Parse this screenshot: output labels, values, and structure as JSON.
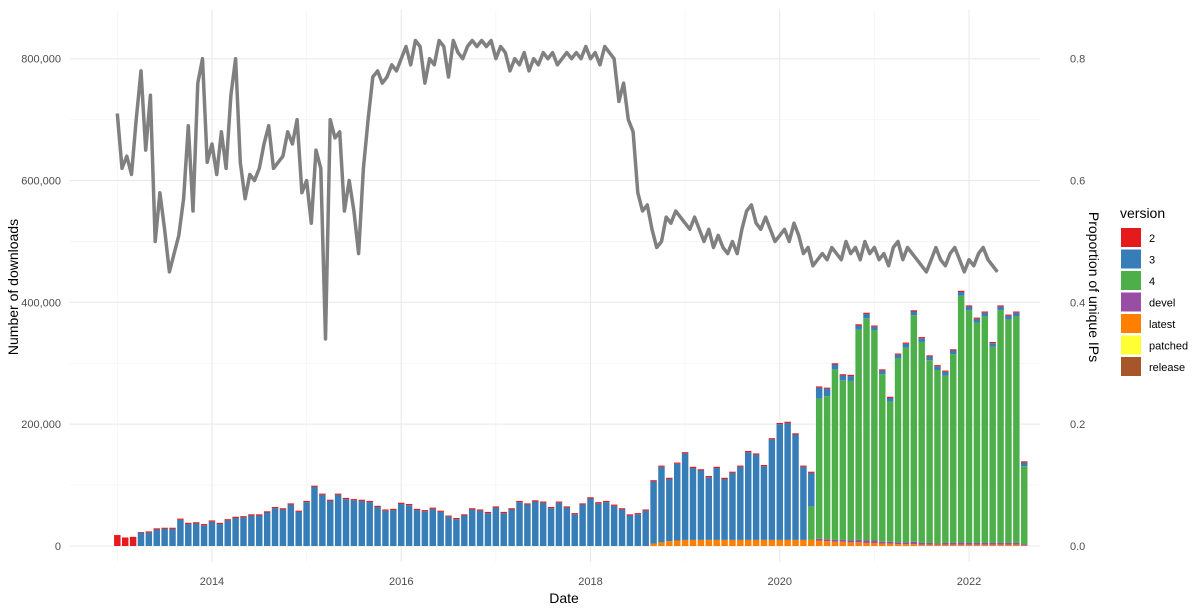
{
  "chart_data": {
    "type": "bar",
    "xlabel": "Date",
    "ylabel": "Number of downloads",
    "y2label": "Proportion of unique IPs",
    "ylim": [
      0,
      880000
    ],
    "y2lim": [
      0,
      0.88
    ],
    "xlim": [
      2012.5,
      2022.75
    ],
    "x_ticks": [
      "2014",
      "2016",
      "2018",
      "2020",
      "2022"
    ],
    "y_ticks": [
      "0",
      "200,000",
      "400,000",
      "600,000",
      "800,000"
    ],
    "y2_ticks": [
      "0.0",
      "0.2",
      "0.4",
      "0.6",
      "0.8"
    ],
    "legend": {
      "title": "version",
      "position": "right"
    },
    "grid": true,
    "colors": {
      "2": "#E41A1C",
      "3": "#377EB8",
      "4": "#4DAF4A",
      "devel": "#984EA3",
      "latest": "#FF7F00",
      "patched": "#FFFF33",
      "release": "#A65628",
      "line": "#808080"
    },
    "series": [
      {
        "name": "2",
        "x_start": 2013.0,
        "values": [
          18000,
          14000,
          15000,
          1000,
          2000,
          2000,
          2000,
          2000,
          2000,
          2000,
          2000,
          2000,
          2000,
          2000,
          2000,
          2000,
          2000,
          2000,
          2000,
          2000,
          2000,
          2000,
          2000,
          2000,
          2000,
          2000,
          2000,
          2000,
          2000,
          2000,
          2000,
          2000,
          2000,
          2000,
          2000,
          2000,
          2000,
          2000,
          2000,
          2000,
          2000,
          2000,
          2000,
          2000,
          2000,
          2000,
          2000,
          2000,
          2000,
          2000,
          2000,
          2000,
          2000,
          2000,
          2000,
          2000,
          2000,
          2000,
          2000,
          2000,
          2000,
          2000,
          2000,
          2000,
          2000,
          2000,
          2000,
          2000,
          2000,
          2000,
          2000,
          2000,
          2000,
          2000,
          2000,
          2000,
          2000,
          2000,
          2000,
          2000,
          2000,
          2000,
          2000,
          2000,
          2000,
          2000,
          2000,
          2000,
          2000,
          2000,
          2000,
          2000,
          2000,
          2000,
          2000,
          2000,
          2000,
          2000,
          2000,
          2000,
          2000,
          2000,
          2000,
          2000,
          2000,
          2000,
          2000,
          2000,
          2000,
          2000,
          2000,
          2000,
          2000,
          2000,
          2000,
          2000
        ]
      },
      {
        "name": "3",
        "x_start": 2013.0,
        "values": [
          0,
          0,
          0,
          22000,
          22000,
          27000,
          28000,
          28000,
          43000,
          36000,
          37000,
          34000,
          40000,
          36000,
          42000,
          46000,
          47000,
          50000,
          50000,
          55000,
          62000,
          60000,
          68000,
          56000,
          72000,
          97000,
          84000,
          74000,
          84000,
          77000,
          75000,
          74000,
          72000,
          64000,
          58000,
          59000,
          69000,
          67000,
          59000,
          57000,
          61000,
          56000,
          48000,
          44000,
          50000,
          60000,
          58000,
          54000,
          63000,
          54000,
          60000,
          72000,
          68000,
          73000,
          71000,
          62000,
          71000,
          63000,
          52000,
          68000,
          78000,
          70000,
          72000,
          66000,
          60000,
          50000,
          52000,
          58000,
          102000,
          124000,
          102000,
          126000,
          142000,
          118000,
          114000,
          103000,
          118000,
          100000,
          110000,
          120000,
          144000,
          140000,
          121000,
          165000,
          190000,
          192000,
          173000,
          120000,
          55000,
          18000,
          12000,
          8000,
          8000,
          8000,
          7000,
          7000,
          6000,
          6000,
          6000,
          6000,
          6000,
          6000,
          6000,
          6000,
          6000,
          6000,
          6000,
          6000,
          6000,
          6000,
          6000,
          6000,
          6000,
          6000,
          6000,
          6000
        ]
      },
      {
        "name": "4",
        "x_start": 2013.0,
        "values": [
          0,
          0,
          0,
          0,
          0,
          0,
          0,
          0,
          0,
          0,
          0,
          0,
          0,
          0,
          0,
          0,
          0,
          0,
          0,
          0,
          0,
          0,
          0,
          0,
          0,
          0,
          0,
          0,
          0,
          0,
          0,
          0,
          0,
          0,
          0,
          0,
          0,
          0,
          0,
          0,
          0,
          0,
          0,
          0,
          0,
          0,
          0,
          0,
          0,
          0,
          0,
          0,
          0,
          0,
          0,
          0,
          0,
          0,
          0,
          0,
          0,
          0,
          0,
          0,
          0,
          0,
          0,
          0,
          0,
          0,
          0,
          0,
          0,
          0,
          0,
          0,
          0,
          0,
          0,
          0,
          0,
          0,
          0,
          0,
          0,
          0,
          0,
          0,
          55000,
          230000,
          235000,
          280000,
          262000,
          262000,
          345000,
          365000,
          345000,
          275000,
          230000,
          302000,
          320000,
          372000,
          330000,
          300000,
          285000,
          275000,
          310000,
          405000,
          382000,
          362000,
          372000,
          322000,
          382000,
          367000,
          372000,
          128000
        ]
      },
      {
        "name": "devel",
        "x_start": 2013.0,
        "values": [
          0,
          0,
          0,
          0,
          0,
          0,
          0,
          0,
          0,
          0,
          0,
          0,
          0,
          0,
          0,
          0,
          0,
          0,
          0,
          0,
          0,
          0,
          0,
          0,
          0,
          0,
          0,
          0,
          0,
          0,
          0,
          0,
          0,
          0,
          0,
          0,
          0,
          0,
          0,
          0,
          0,
          0,
          0,
          0,
          0,
          0,
          0,
          0,
          0,
          0,
          0,
          0,
          0,
          0,
          0,
          0,
          0,
          0,
          0,
          0,
          0,
          0,
          0,
          0,
          0,
          0,
          0,
          0,
          0,
          0,
          0,
          0,
          0,
          0,
          0,
          0,
          0,
          0,
          0,
          0,
          0,
          0,
          0,
          0,
          0,
          0,
          0,
          0,
          0,
          3000,
          3000,
          3000,
          3000,
          3000,
          4000,
          4000,
          4000,
          3000,
          3000,
          3000,
          3000,
          4000,
          3000,
          3000,
          2000,
          3000,
          3000,
          4000,
          3000,
          3000,
          3000,
          3000,
          3000,
          3000,
          3000,
          2000
        ]
      },
      {
        "name": "latest",
        "x_start": 2013.0,
        "values": [
          0,
          0,
          0,
          0,
          0,
          0,
          0,
          0,
          0,
          0,
          0,
          0,
          0,
          0,
          0,
          0,
          0,
          0,
          0,
          0,
          0,
          0,
          0,
          0,
          0,
          0,
          0,
          0,
          0,
          0,
          0,
          0,
          0,
          0,
          0,
          0,
          0,
          0,
          0,
          0,
          0,
          0,
          0,
          0,
          0,
          0,
          0,
          0,
          0,
          0,
          0,
          0,
          0,
          0,
          0,
          0,
          0,
          0,
          0,
          0,
          0,
          0,
          0,
          0,
          0,
          0,
          0,
          0,
          4000,
          6000,
          8000,
          9000,
          10000,
          10000,
          10000,
          10000,
          10000,
          10000,
          10000,
          10000,
          10000,
          10000,
          10000,
          10000,
          10000,
          10000,
          10000,
          10000,
          10000,
          9000,
          8000,
          7000,
          7000,
          6000,
          6000,
          5000,
          5000,
          4000,
          4000,
          3000,
          3000,
          3000,
          2000,
          2000,
          2000,
          2000,
          2000,
          2000,
          2000,
          2000,
          2000,
          2000,
          2000,
          2000,
          2000,
          1000
        ]
      },
      {
        "name": "patched",
        "x_start": 2013.0,
        "values": []
      },
      {
        "name": "release",
        "x_start": 2013.0,
        "values": [
          0,
          0,
          0,
          0,
          0,
          0,
          0,
          0,
          0,
          0,
          0,
          0,
          0,
          0,
          0,
          0,
          0,
          0,
          0,
          0,
          0,
          0,
          0,
          0,
          0,
          0,
          0,
          0,
          0,
          0,
          0,
          0,
          0,
          0,
          0,
          0,
          0,
          0,
          0,
          0,
          0,
          0,
          0,
          0,
          0,
          0,
          0,
          0,
          0,
          0,
          0,
          0,
          0,
          0,
          0,
          0,
          0,
          0,
          0,
          0,
          0,
          0,
          0,
          0,
          0,
          0,
          0,
          0,
          0,
          0,
          0,
          0,
          0,
          0,
          0,
          0,
          0,
          0,
          0,
          0,
          0,
          0,
          0,
          0,
          0,
          0,
          0,
          0,
          0,
          0,
          0,
          0,
          0,
          0,
          0,
          0,
          0,
          0,
          0,
          0,
          0,
          0,
          0,
          0,
          0,
          0,
          0,
          0,
          0,
          0,
          0,
          0,
          0,
          0,
          0,
          0,
          0
        ]
      }
    ],
    "line": {
      "axis": "right",
      "x": [
        2013.0,
        2013.05,
        2013.1,
        2013.15,
        2013.2,
        2013.25,
        2013.3,
        2013.35,
        2013.4,
        2013.45,
        2013.5,
        2013.55,
        2013.6,
        2013.65,
        2013.7,
        2013.75,
        2013.8,
        2013.85,
        2013.9,
        2013.95,
        2014.0,
        2014.05,
        2014.1,
        2014.15,
        2014.2,
        2014.25,
        2014.3,
        2014.35,
        2014.4,
        2014.45,
        2014.5,
        2014.55,
        2014.6,
        2014.65,
        2014.7,
        2014.75,
        2014.8,
        2014.85,
        2014.9,
        2014.95,
        2015.0,
        2015.05,
        2015.1,
        2015.15,
        2015.2,
        2015.25,
        2015.3,
        2015.35,
        2015.4,
        2015.45,
        2015.5,
        2015.55,
        2015.6,
        2015.65,
        2015.7,
        2015.75,
        2015.8,
        2015.85,
        2015.9,
        2015.95,
        2016.0,
        2016.05,
        2016.1,
        2016.15,
        2016.2,
        2016.25,
        2016.3,
        2016.35,
        2016.4,
        2016.45,
        2016.5,
        2016.55,
        2016.6,
        2016.65,
        2016.7,
        2016.75,
        2016.8,
        2016.85,
        2016.9,
        2016.95,
        2017.0,
        2017.05,
        2017.1,
        2017.15,
        2017.2,
        2017.25,
        2017.3,
        2017.35,
        2017.4,
        2017.45,
        2017.5,
        2017.55,
        2017.6,
        2017.65,
        2017.7,
        2017.75,
        2017.8,
        2017.85,
        2017.9,
        2017.95,
        2018.0,
        2018.05,
        2018.1,
        2018.15,
        2018.2,
        2018.25,
        2018.3,
        2018.35,
        2018.4,
        2018.45,
        2018.5,
        2018.55,
        2018.6,
        2018.65,
        2018.7,
        2018.75,
        2018.8,
        2018.85,
        2018.9,
        2018.95,
        2019.0,
        2019.05,
        2019.1,
        2019.15,
        2019.2,
        2019.25,
        2019.3,
        2019.35,
        2019.4,
        2019.45,
        2019.5,
        2019.55,
        2019.6,
        2019.65,
        2019.7,
        2019.75,
        2019.8,
        2019.85,
        2019.9,
        2019.95,
        2020.0,
        2020.05,
        2020.1,
        2020.15,
        2020.2,
        2020.25,
        2020.3,
        2020.35,
        2020.4,
        2020.45,
        2020.5,
        2020.55,
        2020.6,
        2020.65,
        2020.7,
        2020.75,
        2020.8,
        2020.85,
        2020.9,
        2020.95,
        2021.0,
        2021.05,
        2021.1,
        2021.15,
        2021.2,
        2021.25,
        2021.3,
        2021.35,
        2021.4,
        2021.45,
        2021.5,
        2021.55,
        2021.6,
        2021.65,
        2021.7,
        2021.75,
        2021.8,
        2021.85,
        2021.9,
        2021.95,
        2022.0,
        2022.05,
        2022.1,
        2022.15,
        2022.2,
        2022.25,
        2022.3
      ],
      "y": [
        0.71,
        0.62,
        0.64,
        0.61,
        0.7,
        0.78,
        0.65,
        0.74,
        0.5,
        0.58,
        0.52,
        0.45,
        0.48,
        0.51,
        0.57,
        0.69,
        0.55,
        0.76,
        0.8,
        0.63,
        0.66,
        0.61,
        0.68,
        0.62,
        0.74,
        0.8,
        0.63,
        0.57,
        0.61,
        0.6,
        0.62,
        0.66,
        0.69,
        0.62,
        0.63,
        0.64,
        0.68,
        0.66,
        0.7,
        0.58,
        0.6,
        0.53,
        0.65,
        0.62,
        0.34,
        0.7,
        0.67,
        0.68,
        0.55,
        0.6,
        0.55,
        0.48,
        0.62,
        0.7,
        0.77,
        0.78,
        0.76,
        0.77,
        0.79,
        0.78,
        0.8,
        0.82,
        0.79,
        0.83,
        0.82,
        0.76,
        0.8,
        0.79,
        0.83,
        0.82,
        0.77,
        0.83,
        0.81,
        0.8,
        0.82,
        0.83,
        0.82,
        0.83,
        0.82,
        0.83,
        0.8,
        0.82,
        0.81,
        0.78,
        0.8,
        0.79,
        0.81,
        0.78,
        0.8,
        0.79,
        0.81,
        0.8,
        0.81,
        0.79,
        0.8,
        0.81,
        0.8,
        0.81,
        0.8,
        0.82,
        0.8,
        0.81,
        0.79,
        0.82,
        0.81,
        0.8,
        0.73,
        0.76,
        0.7,
        0.68,
        0.58,
        0.55,
        0.56,
        0.52,
        0.49,
        0.5,
        0.54,
        0.53,
        0.55,
        0.54,
        0.53,
        0.52,
        0.54,
        0.52,
        0.5,
        0.52,
        0.49,
        0.51,
        0.49,
        0.48,
        0.5,
        0.48,
        0.52,
        0.55,
        0.56,
        0.53,
        0.52,
        0.54,
        0.52,
        0.5,
        0.51,
        0.52,
        0.5,
        0.53,
        0.51,
        0.48,
        0.49,
        0.46,
        0.47,
        0.48,
        0.47,
        0.49,
        0.48,
        0.47,
        0.5,
        0.48,
        0.49,
        0.47,
        0.5,
        0.48,
        0.49,
        0.47,
        0.48,
        0.46,
        0.49,
        0.5,
        0.47,
        0.49,
        0.48,
        0.47,
        0.46,
        0.45,
        0.47,
        0.49,
        0.47,
        0.46,
        0.48,
        0.49,
        0.47,
        0.45,
        0.47,
        0.46,
        0.48,
        0.49,
        0.47,
        0.46,
        0.45
      ]
    }
  }
}
